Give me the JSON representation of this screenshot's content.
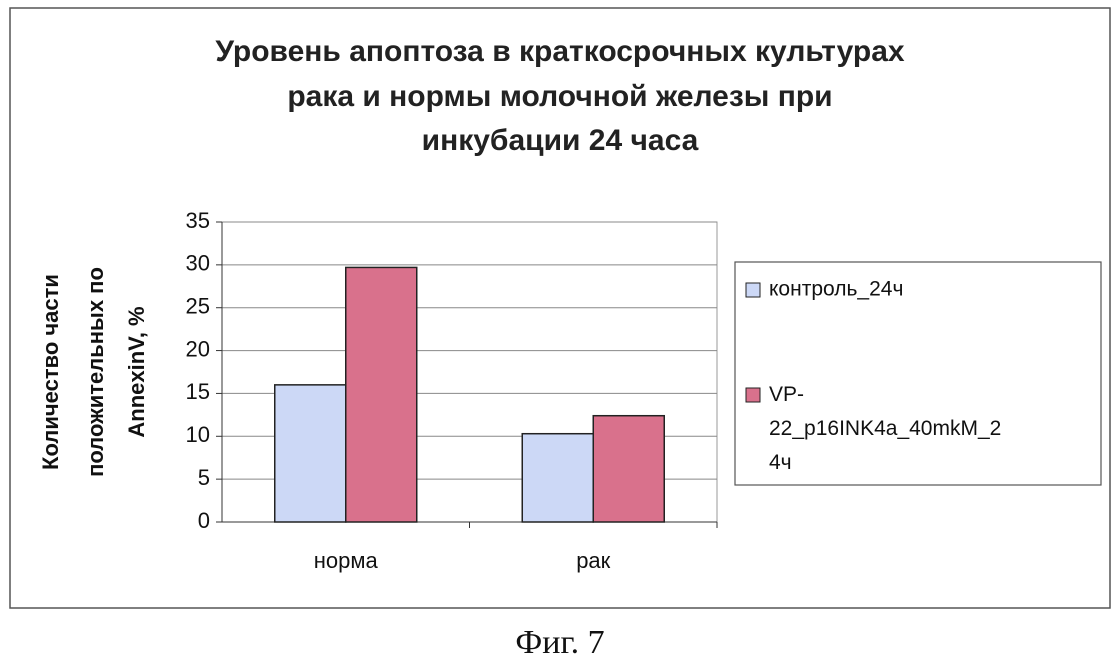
{
  "chart_data": {
    "type": "bar",
    "title": [
      "Уровень апоптоза в краткосрочных культурах",
      "рака и нормы молочной железы при",
      "инкубации 24 часа"
    ],
    "y_label": [
      "Количество части",
      "положительных по",
      "AnnexinV, %"
    ],
    "categories": [
      "норма",
      "рак"
    ],
    "series": [
      {
        "name": "контроль_24ч",
        "color": "#ccd8f6",
        "values": [
          16,
          10.3
        ]
      },
      {
        "name": "VP-22_p16INK4a_40mkM_24ч",
        "color": "#d9718c",
        "values": [
          29.7,
          12.4
        ]
      }
    ],
    "ylim": [
      0,
      35
    ],
    "yticks": [
      0,
      5,
      10,
      15,
      20,
      25,
      30,
      35
    ],
    "grid": true,
    "legend": "right",
    "caption": "Фиг. 7"
  }
}
